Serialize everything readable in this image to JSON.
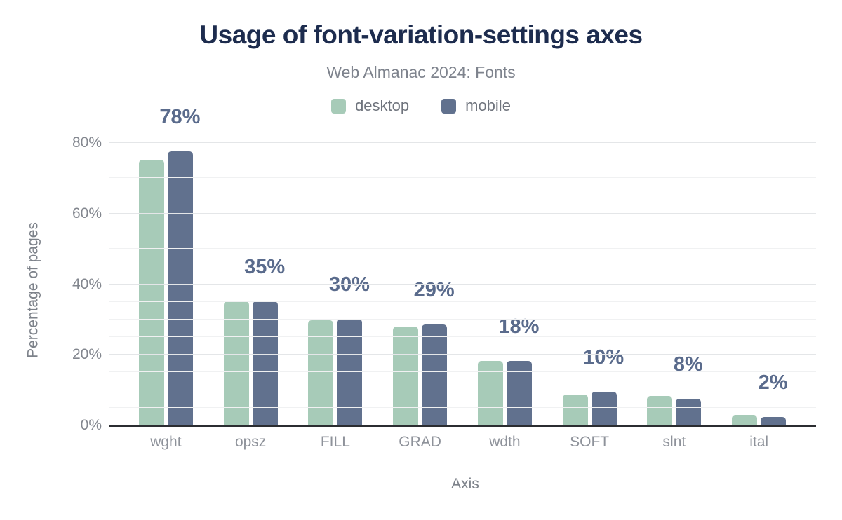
{
  "header": {
    "title": "Usage of font-variation-settings axes",
    "subtitle": "Web Almanac 2024: Fonts"
  },
  "legend": {
    "items": [
      {
        "label": "desktop",
        "color": "#a7cbb8"
      },
      {
        "label": "mobile",
        "color": "#61718e"
      }
    ]
  },
  "colors": {
    "title": "#1d2c4e",
    "subtitle_gray": "#7e838d",
    "desktop_bar": "#a7cbb8",
    "mobile_bar": "#61718e",
    "value_label": "#5a6b8c",
    "axis_line": "#2b2d31",
    "gridline_minor": "#f0f1f2",
    "gridline_major": "#e4e6e8",
    "tick_text": "#82868e",
    "background": "#ffffff"
  },
  "chart_data": {
    "type": "bar",
    "title": "Usage of font-variation-settings axes",
    "subtitle": "Web Almanac 2024: Fonts",
    "categories": [
      "wght",
      "opsz",
      "FILL",
      "GRAD",
      "wdth",
      "SOFT",
      "slnt",
      "ital"
    ],
    "series": [
      {
        "name": "desktop",
        "color": "#a7cbb8",
        "values": [
          75.2,
          35.1,
          29.7,
          27.9,
          18.2,
          8.7,
          8.3,
          3.0
        ]
      },
      {
        "name": "mobile",
        "color": "#61718e",
        "values": [
          77.7,
          35.2,
          30.1,
          28.6,
          18.2,
          9.6,
          7.5,
          2.3
        ]
      }
    ],
    "value_labels": [
      "78%",
      "35%",
      "30%",
      "29%",
      "18%",
      "10%",
      "8%",
      "2%"
    ],
    "xlabel": "Axis",
    "ylabel": "Percentage of pages",
    "ylim": [
      0,
      80
    ],
    "yticks": [
      {
        "value": 0,
        "label": "0%"
      },
      {
        "value": 20,
        "label": "20%"
      },
      {
        "value": 40,
        "label": "40%"
      },
      {
        "value": 60,
        "label": "60%"
      },
      {
        "value": 80,
        "label": "80%"
      }
    ],
    "grid": {
      "horizontal": true,
      "minor_step": 5,
      "major_step": 20
    },
    "legend_position": "top",
    "value_labels_follow": "mobile"
  }
}
